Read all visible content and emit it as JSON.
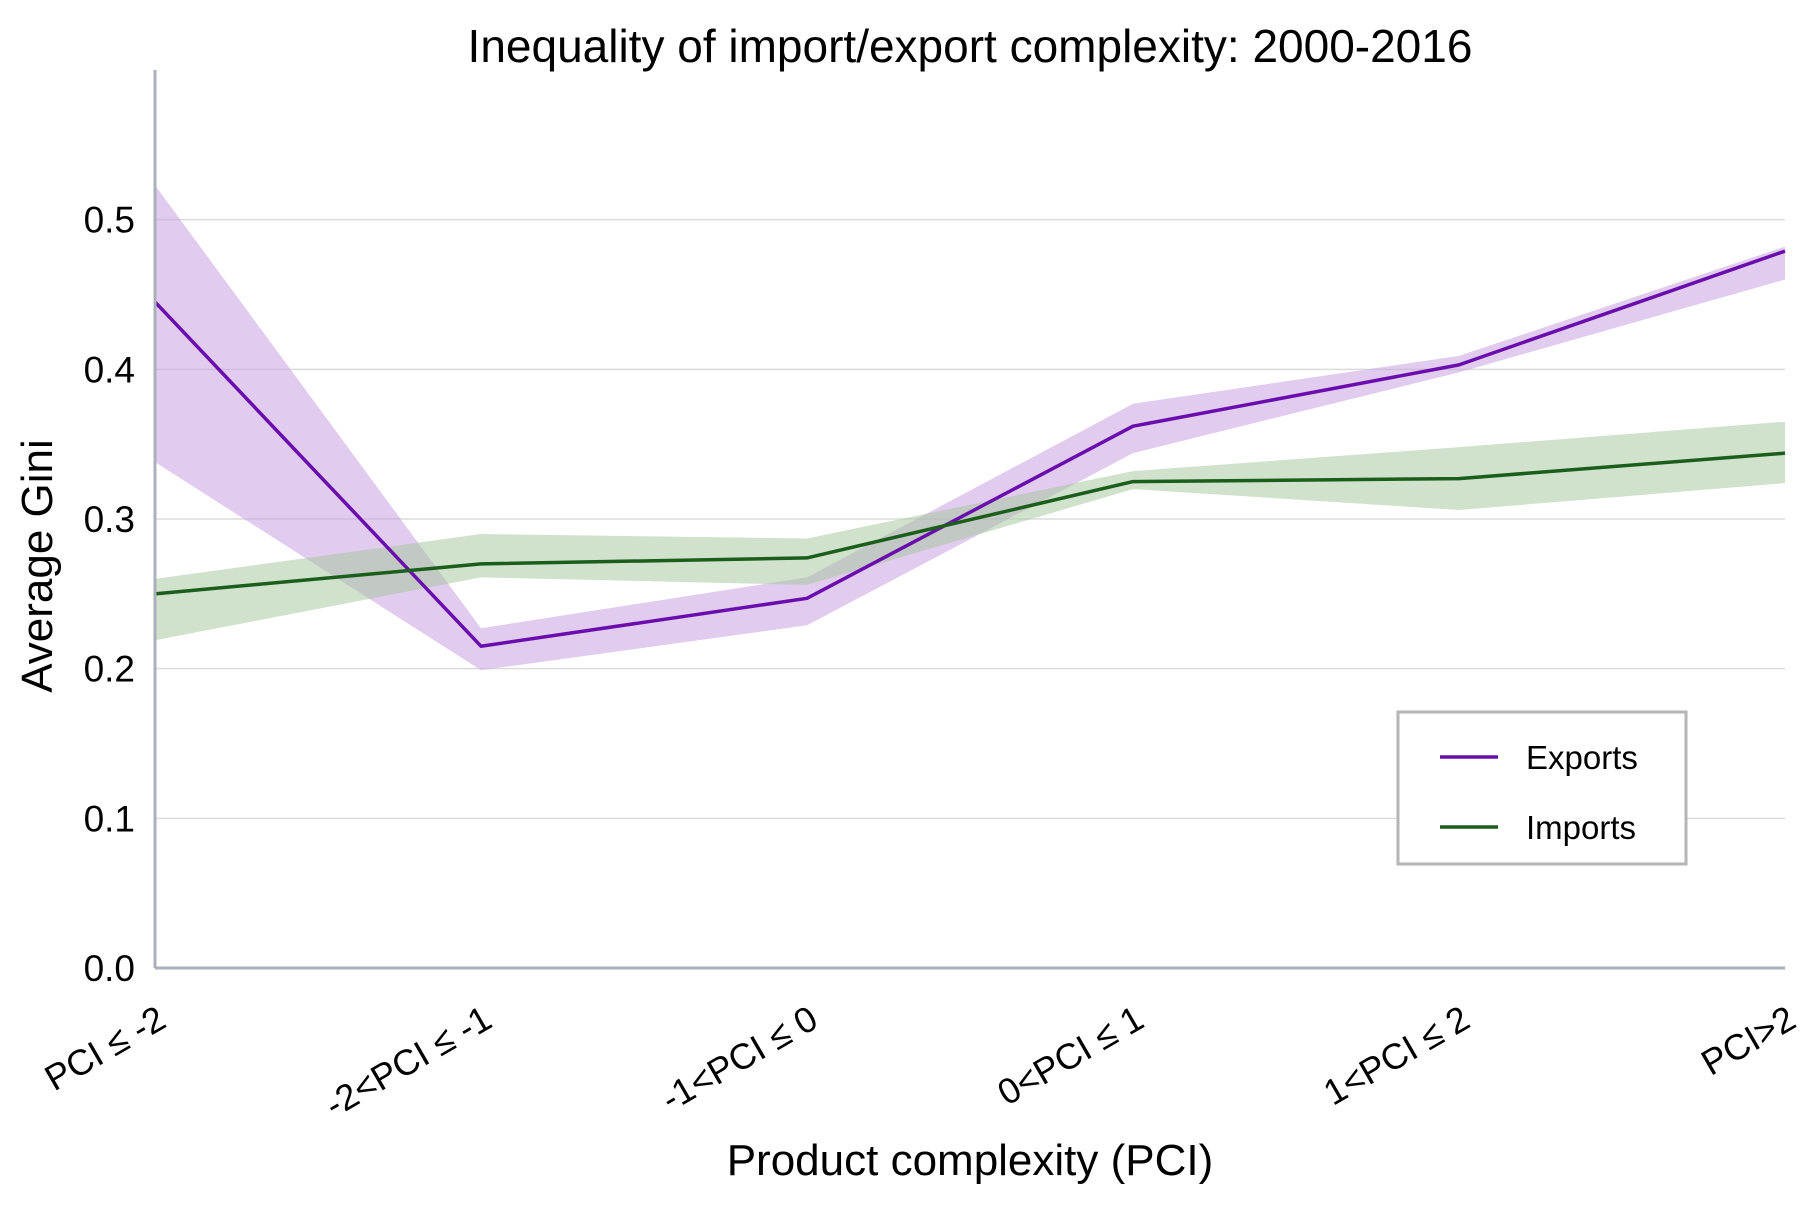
{
  "chart_data": {
    "type": "line",
    "title": "Inequality of import/export complexity: 2000-2016",
    "xlabel": "Product complexity (PCI)",
    "ylabel": "Average Gini",
    "categories": [
      "PCI ≤ -2",
      "-2<PCI ≤ -1",
      "-1<PCI ≤ 0",
      "0<PCI ≤ 1",
      "1<PCI ≤ 2",
      "PCI>2"
    ],
    "ylim": [
      0,
      0.6
    ],
    "yticks": [
      "0.0",
      "0.1",
      "0.2",
      "0.3",
      "0.4",
      "0.5"
    ],
    "ytick_values": [
      0,
      0.1,
      0.2,
      0.3,
      0.4,
      0.5
    ],
    "grid": "horizontal",
    "legend_position": "lower-right",
    "series": [
      {
        "name": "Exports",
        "color": "#6a0dad",
        "band_color": "#c9a0e2",
        "values": [
          0.445,
          0.215,
          0.247,
          0.362,
          0.403,
          0.479
        ],
        "lower": [
          0.338,
          0.199,
          0.229,
          0.344,
          0.398,
          0.46
        ],
        "upper": [
          0.523,
          0.227,
          0.261,
          0.377,
          0.409,
          0.482
        ]
      },
      {
        "name": "Imports",
        "color": "#1b5e1b",
        "band_color": "#a9c9a3",
        "values": [
          0.25,
          0.27,
          0.274,
          0.325,
          0.327,
          0.344
        ],
        "lower": [
          0.219,
          0.261,
          0.256,
          0.32,
          0.306,
          0.324
        ],
        "upper": [
          0.26,
          0.29,
          0.287,
          0.332,
          0.348,
          0.365
        ]
      }
    ]
  }
}
